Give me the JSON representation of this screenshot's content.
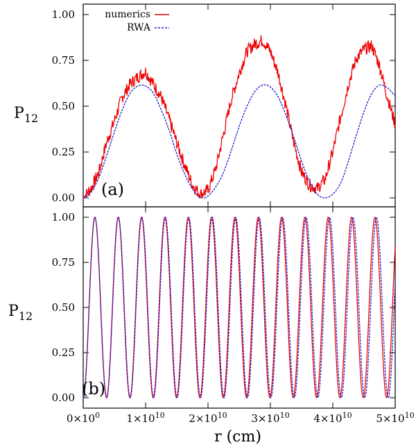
{
  "chart_data": [
    {
      "type": "line",
      "panel_label": "(a)",
      "xlabel": "",
      "ylabel": "P",
      "ylabel_sub": "12",
      "xlim": [
        0,
        50000000000
      ],
      "ylim": [
        0,
        1.05
      ],
      "yticks": [
        "0.00",
        "0.25",
        "0.50",
        "0.75",
        "1.00"
      ],
      "legend": {
        "position": "top-left",
        "entries": [
          "numerics",
          "RWA"
        ]
      },
      "series": [
        {
          "name": "numerics",
          "color": "#ee0000",
          "style": "solid",
          "x": [
            0,
            1250000000,
            2500000000,
            3750000000,
            5000000000,
            6250000000,
            7500000000,
            8750000000,
            10000000000,
            11250000000,
            12500000000,
            13750000000,
            15000000000,
            16250000000,
            17500000000,
            18750000000,
            20000000000,
            21250000000,
            22500000000,
            23750000000,
            25000000000,
            26250000000,
            27500000000,
            28750000000,
            30000000000,
            31250000000,
            32500000000,
            33750000000,
            35000000000,
            36250000000,
            37500000000,
            38750000000,
            40000000000,
            41250000000,
            42500000000,
            43750000000,
            45000000000,
            46250000000,
            47500000000,
            48750000000,
            50000000000
          ],
          "y": [
            0.0,
            0.05,
            0.14,
            0.3,
            0.42,
            0.55,
            0.62,
            0.66,
            0.69,
            0.62,
            0.55,
            0.43,
            0.3,
            0.18,
            0.07,
            0.02,
            0.04,
            0.16,
            0.35,
            0.54,
            0.68,
            0.8,
            0.84,
            0.86,
            0.8,
            0.68,
            0.5,
            0.3,
            0.14,
            0.07,
            0.05,
            0.1,
            0.25,
            0.44,
            0.62,
            0.76,
            0.81,
            0.83,
            0.72,
            0.55,
            0.4
          ]
        },
        {
          "name": "RWA",
          "color": "#1a1acc",
          "style": "dashed",
          "x": [
            0,
            1250000000,
            2500000000,
            3750000000,
            5000000000,
            6250000000,
            7500000000,
            8750000000,
            10000000000,
            11250000000,
            12500000000,
            13750000000,
            15000000000,
            16250000000,
            17500000000,
            18750000000,
            20000000000,
            21250000000,
            22500000000,
            23750000000,
            25000000000,
            26250000000,
            27500000000,
            28750000000,
            30000000000,
            31250000000,
            32500000000,
            33750000000,
            35000000000,
            36250000000,
            37500000000,
            38750000000,
            40000000000,
            41250000000,
            42500000000,
            43750000000,
            45000000000,
            46250000000,
            47500000000,
            48750000000,
            50000000000
          ],
          "y": [
            0.0,
            0.03,
            0.11,
            0.23,
            0.36,
            0.48,
            0.57,
            0.61,
            0.61,
            0.57,
            0.48,
            0.37,
            0.24,
            0.13,
            0.05,
            0.0,
            0.01,
            0.06,
            0.14,
            0.26,
            0.39,
            0.5,
            0.58,
            0.615,
            0.605,
            0.55,
            0.45,
            0.33,
            0.2,
            0.09,
            0.02,
            0.0,
            0.02,
            0.08,
            0.2,
            0.34,
            0.47,
            0.57,
            0.615,
            0.6,
            0.56
          ]
        }
      ]
    },
    {
      "type": "line",
      "panel_label": "(b)",
      "xlabel": "r (cm)",
      "ylabel": "P",
      "ylabel_sub": "12",
      "xlim": [
        0,
        50000000000
      ],
      "ylim": [
        -0.05,
        1.05
      ],
      "yticks": [
        "0.00",
        "0.25",
        "0.50",
        "0.75",
        "1.00"
      ],
      "xticks": [
        {
          "mantissa": "0",
          "exponent": "0"
        },
        {
          "mantissa": "1",
          "exponent": "10"
        },
        {
          "mantissa": "2",
          "exponent": "10"
        },
        {
          "mantissa": "3",
          "exponent": "10"
        },
        {
          "mantissa": "4",
          "exponent": "10"
        },
        {
          "mantissa": "5",
          "exponent": "10"
        }
      ],
      "oscillation": {
        "amplitude": 1.0,
        "period_numerics": 3740000000,
        "period_rwa": 3760000000
      },
      "series": [
        {
          "name": "numerics",
          "color": "#ee0000",
          "style": "solid"
        },
        {
          "name": "RWA",
          "color": "#1a1acc",
          "style": "dashed"
        }
      ]
    }
  ]
}
